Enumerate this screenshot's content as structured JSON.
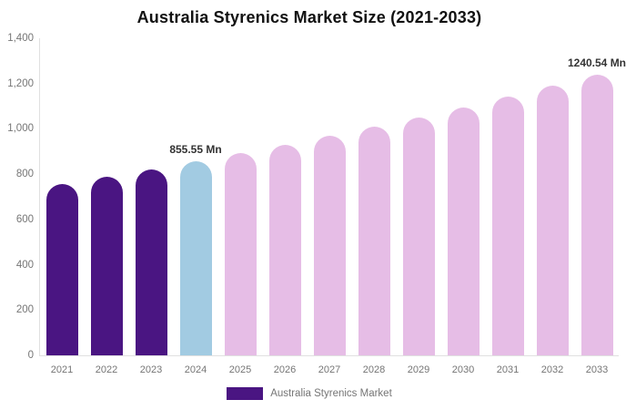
{
  "title": "Australia Styrenics Market Size (2021-2033)",
  "legend": {
    "label": "Australia Styrenics Market",
    "swatch_color": "#4a1582"
  },
  "colors": {
    "purple": "#4a1582",
    "blue": "#a2cbe2",
    "pink": "#e6bde6",
    "axis_line": "#e0e0e0",
    "tick_text": "#757575",
    "title_text": "#111111",
    "annotation_text": "#333333",
    "background": "#ffffff"
  },
  "chart_data": {
    "type": "bar",
    "title": "Australia Styrenics Market Size (2021-2033)",
    "ylabel": "",
    "xlabel": "",
    "unit": "Mn",
    "categories": [
      "2021",
      "2022",
      "2023",
      "2024",
      "2025",
      "2026",
      "2027",
      "2028",
      "2029",
      "2030",
      "2031",
      "2032",
      "2033"
    ],
    "values": [
      755.9,
      787.8,
      820.9,
      855.55,
      891.6,
      929.2,
      968.4,
      1009.2,
      1051.7,
      1096.0,
      1142.2,
      1190.3,
      1240.54
    ],
    "bar_colors": [
      "#4a1582",
      "#4a1582",
      "#4a1582",
      "#a2cbe2",
      "#e6bde6",
      "#e6bde6",
      "#e6bde6",
      "#e6bde6",
      "#e6bde6",
      "#e6bde6",
      "#e6bde6",
      "#e6bde6",
      "#e6bde6"
    ],
    "ylim": [
      0,
      1400
    ],
    "y_tick_values": [
      0,
      200,
      400,
      600,
      800,
      1000,
      1200,
      1400
    ],
    "y_tick_labels": [
      "0",
      "200",
      "400",
      "600",
      "800",
      "1,000",
      "1,200",
      "1,400"
    ],
    "grid": false,
    "legend_position": "bottom",
    "legend_entries": [
      "Australia Styrenics Market"
    ],
    "annotations": [
      {
        "category": "2024",
        "text": "855.55 Mn"
      },
      {
        "category": "2033",
        "text": "1240.54 Mn"
      }
    ]
  }
}
